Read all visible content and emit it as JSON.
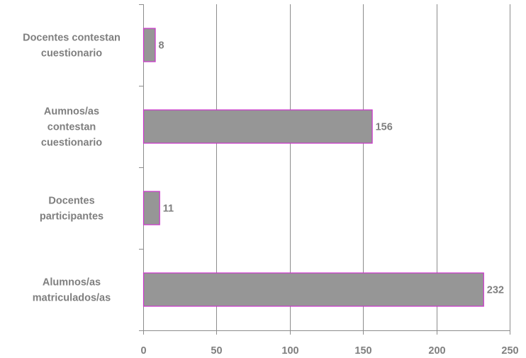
{
  "chart_data": {
    "type": "bar",
    "orientation": "horizontal",
    "categories": [
      [
        "Docentes contestan",
        "cuestionario"
      ],
      [
        "Aumnos/as",
        "contestan",
        "cuestionario"
      ],
      [
        "Docentes",
        "participantes"
      ],
      [
        "Alumnos/as",
        "matriculados/as"
      ]
    ],
    "values": [
      8,
      156,
      11,
      232
    ],
    "data_labels": [
      "8",
      "156",
      "11",
      "232"
    ],
    "xlim": [
      0,
      250
    ],
    "x_ticks": [
      0,
      50,
      100,
      150,
      200,
      250
    ],
    "x_tick_labels": [
      "0",
      "50",
      "100",
      "150",
      "200",
      "250"
    ],
    "grid": "vertical",
    "legend": "none",
    "colors": {
      "bar_fill": "#969696",
      "bar_border": "#cc33cc",
      "grid": "#8c8c8c",
      "axis": "#8c8c8c",
      "text": "#7f7f7f"
    }
  }
}
